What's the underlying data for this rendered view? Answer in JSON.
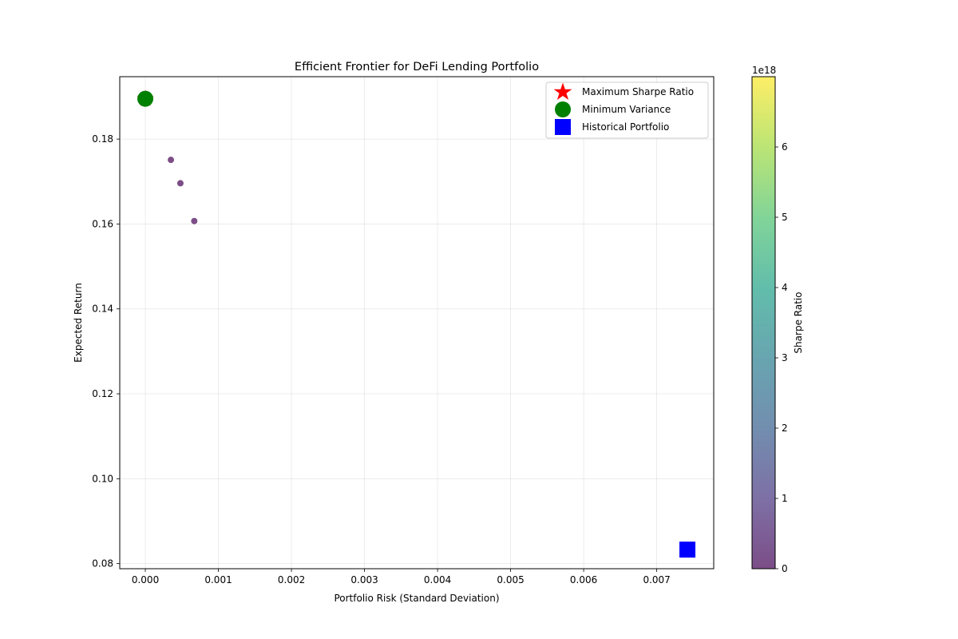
{
  "chart_data": {
    "type": "scatter",
    "title": "Efficient Frontier for DeFi Lending Portfolio",
    "xlabel": "Portfolio Risk (Standard Deviation)",
    "ylabel": "Expected Return",
    "xlim": [
      -0.00035,
      0.00778
    ],
    "ylim": [
      0.0788,
      0.1947
    ],
    "xticks": [
      0.0,
      0.001,
      0.002,
      0.003,
      0.004,
      0.005,
      0.006,
      0.007
    ],
    "xtick_labels": [
      "0.000",
      "0.001",
      "0.002",
      "0.003",
      "0.004",
      "0.005",
      "0.006",
      "0.007"
    ],
    "yticks": [
      0.08,
      0.1,
      0.12,
      0.14,
      0.16,
      0.18
    ],
    "ytick_labels": [
      "0.08",
      "0.10",
      "0.12",
      "0.14",
      "0.16",
      "0.18"
    ],
    "grid": true,
    "legend_position": "top-right",
    "frontier_points": [
      {
        "x": 0.0,
        "y": 0.1895,
        "sharpe": 0
      },
      {
        "x": 0.00035,
        "y": 0.1751,
        "sharpe": 0
      },
      {
        "x": 0.00048,
        "y": 0.1696,
        "sharpe": 0
      },
      {
        "x": 0.00067,
        "y": 0.1607,
        "sharpe": 0
      }
    ],
    "series": [
      {
        "name": "Maximum Sharpe Ratio",
        "marker": "star",
        "color": "#ff0000",
        "x": [
          0.0
        ],
        "y": [
          0.1895
        ]
      },
      {
        "name": "Minimum Variance",
        "marker": "circle",
        "color": "#008000",
        "x": [
          0.0
        ],
        "y": [
          0.1895
        ]
      },
      {
        "name": "Historical Portfolio",
        "marker": "square",
        "color": "#0000ff",
        "x": [
          0.00742
        ],
        "y": [
          0.0833
        ]
      }
    ],
    "colorbar": {
      "label": "Sharpe Ratio",
      "offset_text": "1e18",
      "range": [
        0,
        7
      ],
      "ticks": [
        0,
        1,
        2,
        3,
        4,
        5,
        6
      ],
      "tick_labels": [
        "0",
        "1",
        "2",
        "3",
        "4",
        "5",
        "6"
      ],
      "colormap": "viridis"
    }
  }
}
